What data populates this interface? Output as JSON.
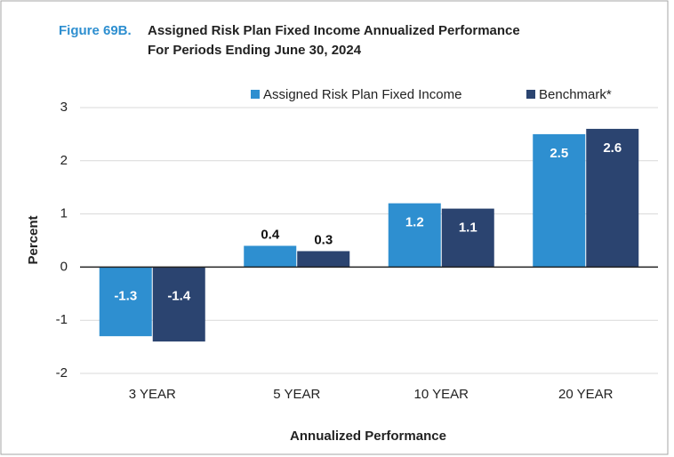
{
  "chart_data": {
    "type": "bar",
    "figure_label": "Figure 69B.",
    "title": "Assigned Risk Plan Fixed Income Annualized Performance",
    "subtitle": "For Periods Ending June 30, 2024",
    "xlabel": "Annualized Performance",
    "ylabel": "Percent",
    "categories": [
      "3 YEAR",
      "5 YEAR",
      "10 YEAR",
      "20 YEAR"
    ],
    "series": [
      {
        "name": "Assigned Risk Plan Fixed Income",
        "color": "#2e8fd0",
        "values": [
          -1.3,
          0.4,
          1.2,
          2.5
        ]
      },
      {
        "name": "Benchmark*",
        "color": "#2b4470",
        "values": [
          -1.4,
          0.3,
          1.1,
          2.6
        ]
      }
    ],
    "ylim": [
      -2,
      3
    ],
    "yticks": [
      -2,
      -1,
      0,
      1,
      2,
      3
    ],
    "grid": true,
    "legend": "top-right"
  }
}
